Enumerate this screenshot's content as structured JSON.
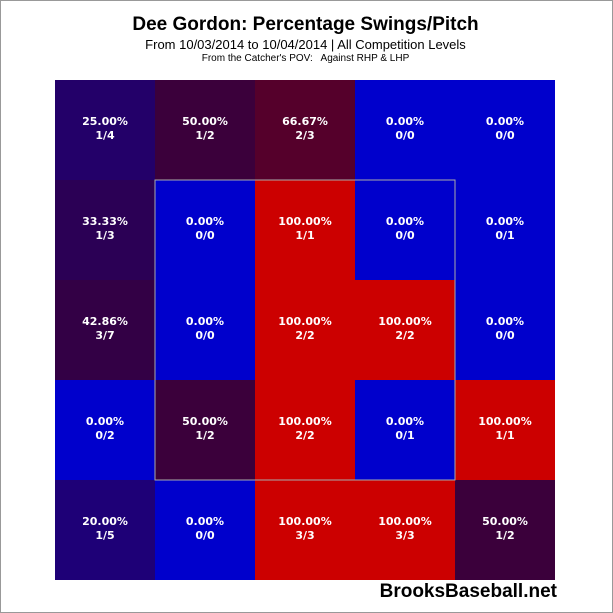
{
  "chart_data": {
    "type": "heatmap",
    "title": "Dee Gordon: Percentage Swings/Pitch",
    "subtitle": "From 10/03/2014 to 10/04/2014 | All Competition Levels",
    "subtitle2": "From the Catcher's POV:   Against RHP & LHP",
    "rows": 5,
    "cols": 5,
    "strike_zone": {
      "rows": [
        1,
        3
      ],
      "cols": [
        1,
        3
      ]
    },
    "cells": [
      [
        {
          "pct": "25.00%",
          "count": "1/4",
          "value": 0.25
        },
        {
          "pct": "50.00%",
          "count": "1/2",
          "value": 0.5
        },
        {
          "pct": "66.67%",
          "count": "2/3",
          "value": 0.6667
        },
        {
          "pct": "0.00%",
          "count": "0/0",
          "value": 0
        },
        {
          "pct": "0.00%",
          "count": "0/0",
          "value": 0
        }
      ],
      [
        {
          "pct": "33.33%",
          "count": "1/3",
          "value": 0.3333
        },
        {
          "pct": "0.00%",
          "count": "0/0",
          "value": 0
        },
        {
          "pct": "100.00%",
          "count": "1/1",
          "value": 1
        },
        {
          "pct": "0.00%",
          "count": "0/0",
          "value": 0
        },
        {
          "pct": "0.00%",
          "count": "0/1",
          "value": 0
        }
      ],
      [
        {
          "pct": "42.86%",
          "count": "3/7",
          "value": 0.4286
        },
        {
          "pct": "0.00%",
          "count": "0/0",
          "value": 0
        },
        {
          "pct": "100.00%",
          "count": "2/2",
          "value": 1
        },
        {
          "pct": "100.00%",
          "count": "2/2",
          "value": 1
        },
        {
          "pct": "0.00%",
          "count": "0/0",
          "value": 0
        }
      ],
      [
        {
          "pct": "0.00%",
          "count": "0/2",
          "value": 0
        },
        {
          "pct": "50.00%",
          "count": "1/2",
          "value": 0.5
        },
        {
          "pct": "100.00%",
          "count": "2/2",
          "value": 1
        },
        {
          "pct": "0.00%",
          "count": "0/1",
          "value": 0
        },
        {
          "pct": "100.00%",
          "count": "1/1",
          "value": 1
        }
      ],
      [
        {
          "pct": "20.00%",
          "count": "1/5",
          "value": 0.2
        },
        {
          "pct": "0.00%",
          "count": "0/0",
          "value": 0
        },
        {
          "pct": "100.00%",
          "count": "3/3",
          "value": 1
        },
        {
          "pct": "100.00%",
          "count": "3/3",
          "value": 1
        },
        {
          "pct": "50.00%",
          "count": "1/2",
          "value": 0.5
        }
      ]
    ],
    "color_low": "#0000cc",
    "color_high": "#cc0000"
  },
  "watermark": "BrooksBaseball.net"
}
